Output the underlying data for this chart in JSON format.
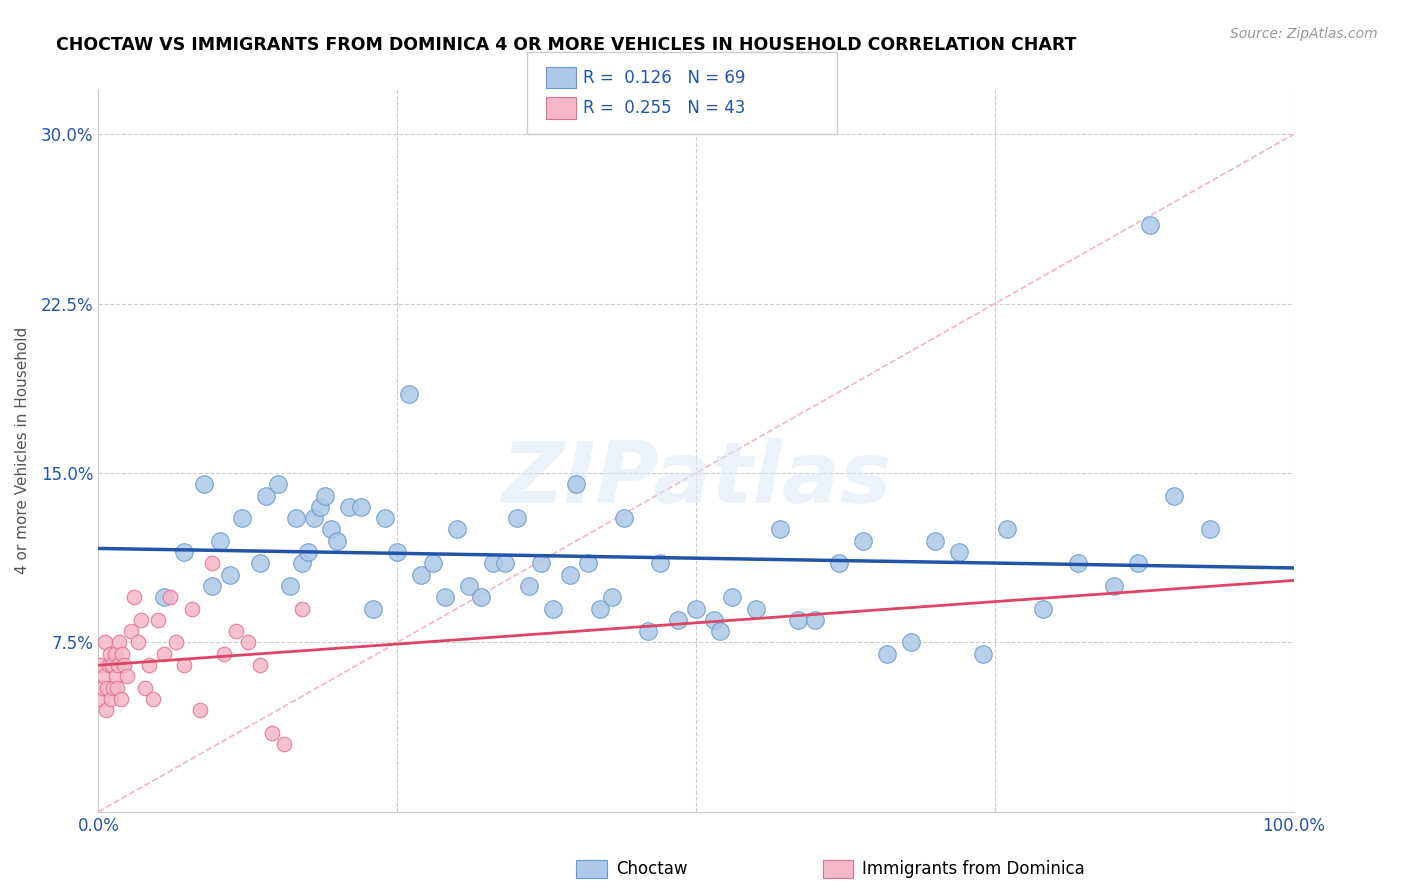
{
  "title": "CHOCTAW VS IMMIGRANTS FROM DOMINICA 4 OR MORE VEHICLES IN HOUSEHOLD CORRELATION CHART",
  "source": "Source: ZipAtlas.com",
  "ylabel": "4 or more Vehicles in Household",
  "xlim": [
    0.0,
    100.0
  ],
  "ylim": [
    0.0,
    32.0
  ],
  "yticks": [
    0.0,
    7.5,
    15.0,
    22.5,
    30.0
  ],
  "xticks": [
    0.0,
    25.0,
    50.0,
    75.0,
    100.0
  ],
  "xtick_labels": [
    "0.0%",
    "",
    "",
    "",
    "100.0%"
  ],
  "ytick_labels": [
    "",
    "7.5%",
    "15.0%",
    "22.5%",
    "30.0%"
  ],
  "R_blue": 0.126,
  "N_blue": 69,
  "R_pink": 0.255,
  "N_pink": 43,
  "blue_face_color": "#adc8e8",
  "blue_edge_color": "#6699cc",
  "pink_face_color": "#f5b8c8",
  "pink_edge_color": "#e07090",
  "blue_line_color": "#2255aa",
  "pink_line_color": "#dd4466",
  "diag_line_color": "#f0b0b8",
  "legend_label_blue": "Choctaw",
  "legend_label_pink": "Immigrants from Dominica",
  "watermark_text": "ZIPatlas",
  "blue_scatter_x": [
    5.5,
    7.2,
    8.8,
    9.5,
    10.2,
    11.0,
    12.0,
    13.5,
    14.0,
    15.0,
    16.0,
    16.5,
    17.0,
    17.5,
    18.0,
    18.5,
    19.0,
    19.5,
    20.0,
    21.0,
    22.0,
    23.0,
    24.0,
    25.0,
    26.0,
    27.0,
    28.0,
    29.0,
    30.0,
    31.0,
    32.0,
    33.0,
    34.0,
    35.0,
    36.0,
    37.0,
    38.0,
    39.5,
    40.0,
    41.0,
    42.0,
    43.0,
    44.0,
    46.0,
    47.0,
    48.5,
    50.0,
    51.5,
    52.0,
    53.0,
    55.0,
    57.0,
    58.5,
    60.0,
    62.0,
    64.0,
    66.0,
    68.0,
    70.0,
    72.0,
    74.0,
    76.0,
    79.0,
    82.0,
    85.0,
    87.0,
    88.0,
    90.0,
    93.0
  ],
  "blue_scatter_y": [
    9.5,
    11.5,
    14.5,
    10.0,
    12.0,
    10.5,
    13.0,
    11.0,
    14.0,
    14.5,
    10.0,
    13.0,
    11.0,
    11.5,
    13.0,
    13.5,
    14.0,
    12.5,
    12.0,
    13.5,
    13.5,
    9.0,
    13.0,
    11.5,
    18.5,
    10.5,
    11.0,
    9.5,
    12.5,
    10.0,
    9.5,
    11.0,
    11.0,
    13.0,
    10.0,
    11.0,
    9.0,
    10.5,
    14.5,
    11.0,
    9.0,
    9.5,
    13.0,
    8.0,
    11.0,
    8.5,
    9.0,
    8.5,
    8.0,
    9.5,
    9.0,
    12.5,
    8.5,
    8.5,
    11.0,
    12.0,
    7.0,
    7.5,
    12.0,
    11.5,
    7.0,
    12.5,
    9.0,
    11.0,
    10.0,
    11.0,
    26.0,
    14.0,
    12.5
  ],
  "pink_scatter_x": [
    0.15,
    0.25,
    0.35,
    0.45,
    0.55,
    0.65,
    0.75,
    0.85,
    0.95,
    1.05,
    1.15,
    1.25,
    1.35,
    1.45,
    1.55,
    1.65,
    1.75,
    1.85,
    1.95,
    2.1,
    2.4,
    2.7,
    3.0,
    3.3,
    3.6,
    3.9,
    4.2,
    4.6,
    5.0,
    5.5,
    6.0,
    6.5,
    7.2,
    7.8,
    8.5,
    9.5,
    10.5,
    11.5,
    12.5,
    13.5,
    14.5,
    15.5,
    17.0
  ],
  "pink_scatter_y": [
    6.5,
    5.0,
    5.5,
    6.0,
    7.5,
    4.5,
    5.5,
    6.5,
    7.0,
    5.0,
    6.5,
    5.5,
    7.0,
    6.0,
    5.5,
    6.5,
    7.5,
    5.0,
    7.0,
    6.5,
    6.0,
    8.0,
    9.5,
    7.5,
    8.5,
    5.5,
    6.5,
    5.0,
    8.5,
    7.0,
    9.5,
    7.5,
    6.5,
    9.0,
    4.5,
    11.0,
    7.0,
    8.0,
    7.5,
    6.5,
    3.5,
    3.0,
    9.0
  ]
}
